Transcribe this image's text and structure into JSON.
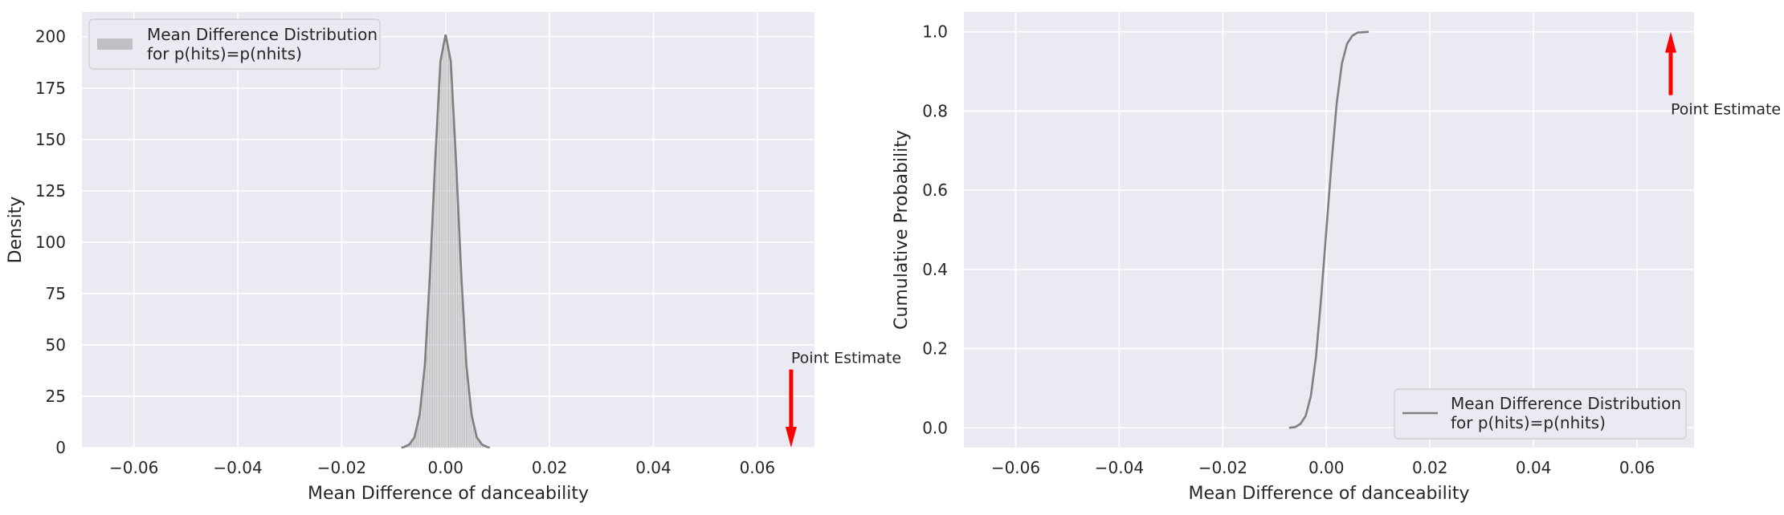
{
  "chart_data": [
    {
      "type": "histogram",
      "xlabel": "Mean Difference of danceability",
      "ylabel": "Density",
      "xlim": [
        -0.07,
        0.071
      ],
      "ylim": [
        0,
        212
      ],
      "xticks": [
        -0.06,
        -0.04,
        -0.02,
        0.0,
        0.02,
        0.04,
        0.06
      ],
      "xtick_labels": [
        "−0.06",
        "−0.04",
        "−0.02",
        "0.00",
        "0.02",
        "0.04",
        "0.06"
      ],
      "yticks": [
        0,
        25,
        50,
        75,
        100,
        125,
        150,
        175,
        200
      ],
      "ytick_labels": [
        "0",
        "25",
        "50",
        "75",
        "100",
        "125",
        "150",
        "175",
        "200"
      ],
      "grid": true,
      "legend": {
        "placement": "upper-left",
        "lines": [
          "Mean Difference Distribution",
          "for p(hits)=p(nhits)"
        ]
      },
      "series": [
        {
          "name": "Mean Difference Distribution for p(hits)=p(nhits)",
          "color": "#808080",
          "x": [
            -0.0085,
            -0.008,
            -0.007,
            -0.006,
            -0.005,
            -0.004,
            -0.003,
            -0.002,
            -0.001,
            0.0,
            0.001,
            0.002,
            0.003,
            0.004,
            0.005,
            0.006,
            0.007,
            0.008,
            0.0085
          ],
          "y": [
            0,
            0.3,
            1.5,
            5,
            16,
            40,
            85,
            140,
            188,
            201,
            188,
            140,
            85,
            40,
            16,
            5,
            1.5,
            0.3,
            0
          ]
        }
      ],
      "annotation": {
        "text": "Point Estimate",
        "x": 0.0665,
        "arrow_from": 38,
        "arrow_to": 0,
        "color": "#ff0000"
      }
    },
    {
      "type": "line",
      "xlabel": "Mean Difference of danceability",
      "ylabel": "Cumulative Probability",
      "xlim": [
        -0.07,
        0.071
      ],
      "ylim": [
        -0.05,
        1.05
      ],
      "xticks": [
        -0.06,
        -0.04,
        -0.02,
        0.0,
        0.02,
        0.04,
        0.06
      ],
      "xtick_labels": [
        "−0.06",
        "−0.04",
        "−0.02",
        "0.00",
        "0.02",
        "0.04",
        "0.06"
      ],
      "yticks": [
        0.0,
        0.2,
        0.4,
        0.6,
        0.8,
        1.0
      ],
      "ytick_labels": [
        "0.0",
        "0.2",
        "0.4",
        "0.6",
        "0.8",
        "1.0"
      ],
      "grid": true,
      "legend": {
        "placement": "lower-right",
        "lines": [
          "Mean Difference Distribution",
          "for p(hits)=p(nhits)"
        ]
      },
      "series": [
        {
          "name": "Mean Difference Distribution for p(hits)=p(nhits)",
          "color": "#808080",
          "x": [
            -0.0072,
            -0.006,
            -0.005,
            -0.004,
            -0.003,
            -0.002,
            -0.001,
            0.0,
            0.001,
            0.002,
            0.003,
            0.004,
            0.005,
            0.006,
            0.0082
          ],
          "y": [
            0.0,
            0.002,
            0.01,
            0.03,
            0.08,
            0.18,
            0.33,
            0.5,
            0.67,
            0.82,
            0.92,
            0.97,
            0.99,
            0.998,
            1.0
          ]
        }
      ],
      "annotation": {
        "text": "Point Estimate",
        "x": 0.0665,
        "arrow_from": 0.84,
        "arrow_to": 1.0,
        "color": "#ff0000"
      }
    }
  ]
}
